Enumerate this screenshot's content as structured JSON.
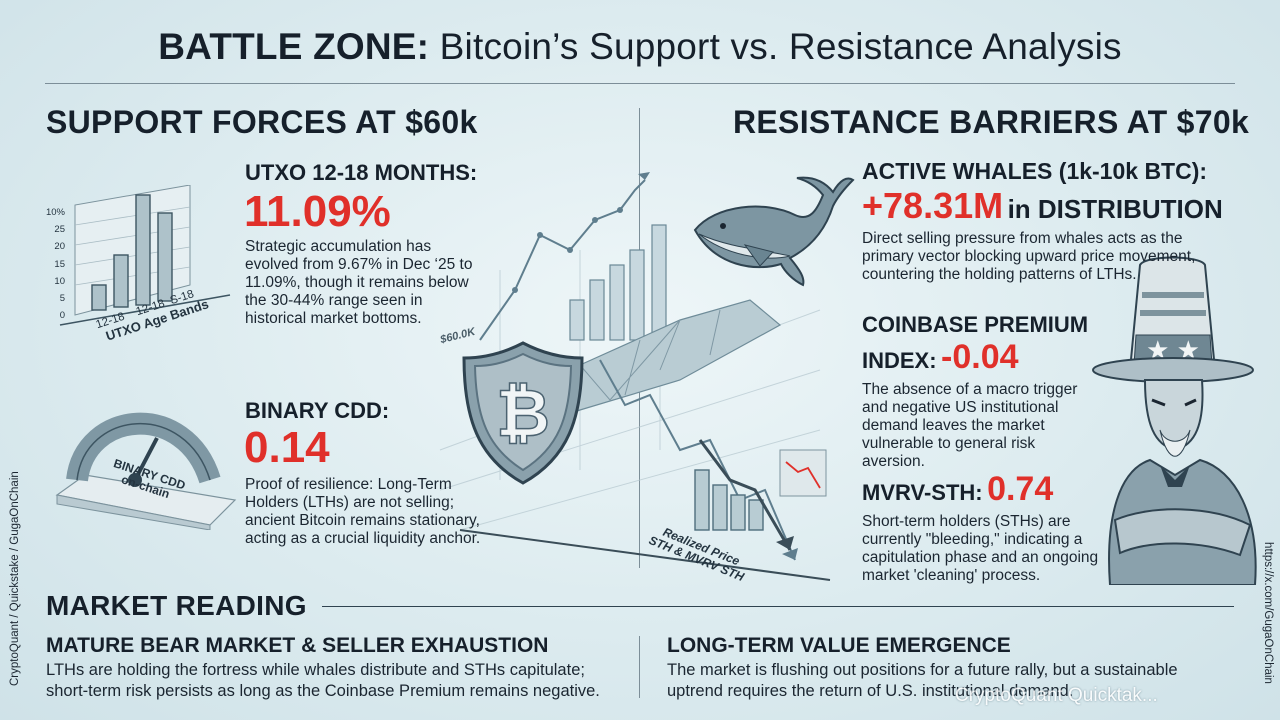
{
  "title": {
    "bold": "BATTLE ZONE:",
    "rest": " Bitcoin’s Support vs. Resistance Analysis"
  },
  "support": {
    "heading": "SUPPORT FORCES AT $60k",
    "utxo": {
      "label": "UTXO 12-18 MONTHS:",
      "value": "11.09%",
      "text": "Strategic accumulation has evolved from 9.67% in Dec ‘25 to 11.09%, though it remains below the 30-44% range seen in historical market bottoms."
    },
    "cdd": {
      "label": "BINARY CDD:",
      "value": "0.14",
      "text": "Proof of resilience: Long-Term Holders (LTHs) are not selling; ancient Bitcoin remains stationary, acting as a crucial liquidity anchor."
    }
  },
  "resistance": {
    "heading": "RESISTANCE BARRIERS AT $70k",
    "whales": {
      "label": "ACTIVE WHALES (1k-10k BTC):",
      "value": "+78.31M",
      "suffix": "in DISTRIBUTION",
      "text": "Direct selling pressure from whales acts as the primary vector blocking upward price movement, countering the holding patterns of LTHs."
    },
    "coinbase": {
      "label1": "COINBASE PREMIUM",
      "label2": "INDEX:",
      "value": "-0.04",
      "text": "The absence of a macro trigger and negative US institutional demand leaves the market vulnerable to general risk aversion."
    },
    "mvrv": {
      "label": "MVRV-STH:",
      "value": "0.74",
      "text": "Short-term holders (STHs) are currently \"bleeding,\" indicating a capitulation phase and an ongoing market 'cleaning' process."
    }
  },
  "illustrations": {
    "bar_chart": {
      "ticks": [
        "10%",
        "25",
        "20",
        "15",
        "10",
        "5",
        "0"
      ],
      "labels": [
        "12-18",
        "12-18",
        "S-18"
      ],
      "axis_title": "UTXO Age Bands"
    },
    "gauge": {
      "line1": "BINARY CDD",
      "line2": "on-chain"
    },
    "price_tag": "$60.0K",
    "realized": {
      "line1": "Realized Price",
      "line2": "STH & MVRV STH"
    },
    "shield_icon": "bitcoin-shield",
    "whale_icon": "whale",
    "uncle_sam_icon": "uncle-sam"
  },
  "market_reading": {
    "heading": "MARKET READING",
    "left": {
      "title": "MATURE BEAR MARKET & SELLER EXHAUSTION",
      "text": "LTHs are holding the fortress while whales distribute and STHs capitulate; short-term risk persists as long as the Coinbase Premium remains negative."
    },
    "right": {
      "title": "LONG-TERM VALUE EMERGENCE",
      "text": "The market is flushing out positions for a future rally, but a sustainable uptrend requires the return of U.S. institutional demand."
    }
  },
  "credits": {
    "left": "CryptoQuant / Quickstake / GugaOnChain",
    "right": "https://x.com/GugaOnChain",
    "watermark": "CryptoQuant Quicktak..."
  },
  "colors": {
    "accent_red": "#e0302a",
    "text_dark": "#16202b",
    "background": "#dcebef"
  }
}
